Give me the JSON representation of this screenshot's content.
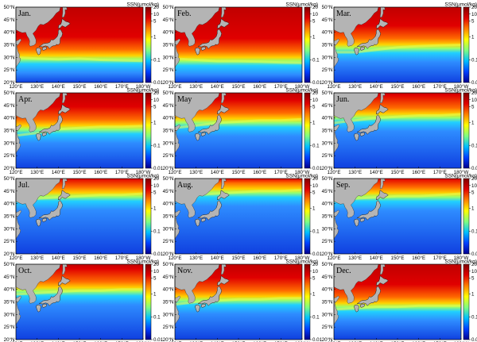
{
  "figure": {
    "longitude_labels": [
      "120°E",
      "130°E",
      "140°E",
      "150°E",
      "160°E",
      "170°E",
      "180°W"
    ],
    "latitude_labels": [
      "50°N",
      "45°N",
      "40°N",
      "35°N",
      "30°N",
      "25°N",
      "20°N"
    ],
    "colorbar": {
      "unit_label": "SSN(μmol/kg)",
      "tick_labels": [
        "20",
        "10",
        "5",
        "1",
        "0.1",
        "0.01"
      ],
      "tick_values": [
        20,
        10,
        5,
        1,
        0.1,
        0.01
      ]
    },
    "colors": {
      "land": "#b4b4b4",
      "palette": [
        "#000090",
        "#0040ff",
        "#00c0ff",
        "#80ff80",
        "#ffff00",
        "#ff8000",
        "#e00000",
        "#800000"
      ]
    },
    "panels": [
      {
        "month": "Jan.",
        "front_lat": [
          30.0,
          29.5,
          29.2,
          29.5,
          29.0,
          28.8,
          28.6
        ]
      },
      {
        "month": "Feb.",
        "front_lat": [
          29.5,
          29.0,
          28.5,
          28.5,
          28.3,
          28.0,
          27.8
        ]
      },
      {
        "month": "Mar.",
        "front_lat": [
          32.0,
          32.0,
          33.0,
          34.0,
          34.5,
          34.8,
          35.0
        ]
      },
      {
        "month": "Apr.",
        "front_lat": [
          33.0,
          34.0,
          35.5,
          36.0,
          36.5,
          36.5,
          36.8
        ]
      },
      {
        "month": "May",
        "front_lat": [
          36.0,
          37.0,
          38.0,
          38.5,
          39.0,
          39.0,
          39.5
        ]
      },
      {
        "month": "Jun.",
        "front_lat": [
          38.0,
          39.0,
          40.0,
          40.5,
          41.0,
          41.0,
          41.5
        ]
      },
      {
        "month": "Jul.",
        "front_lat": [
          41.0,
          42.0,
          42.5,
          43.0,
          43.5,
          43.5,
          44.0
        ]
      },
      {
        "month": "Aug.",
        "front_lat": [
          43.0,
          43.5,
          44.0,
          44.5,
          45.0,
          45.0,
          45.5
        ]
      },
      {
        "month": "Sep.",
        "front_lat": [
          41.0,
          42.0,
          42.5,
          43.0,
          43.0,
          43.5,
          44.0
        ]
      },
      {
        "month": "Oct.",
        "front_lat": [
          38.0,
          38.5,
          39.0,
          39.5,
          39.5,
          40.0,
          40.0
        ]
      },
      {
        "month": "Nov.",
        "front_lat": [
          34.0,
          35.0,
          35.5,
          36.0,
          36.0,
          36.5,
          36.5
        ]
      },
      {
        "month": "Dec.",
        "front_lat": [
          32.0,
          32.5,
          33.0,
          33.0,
          33.5,
          33.5,
          33.5
        ]
      }
    ]
  }
}
